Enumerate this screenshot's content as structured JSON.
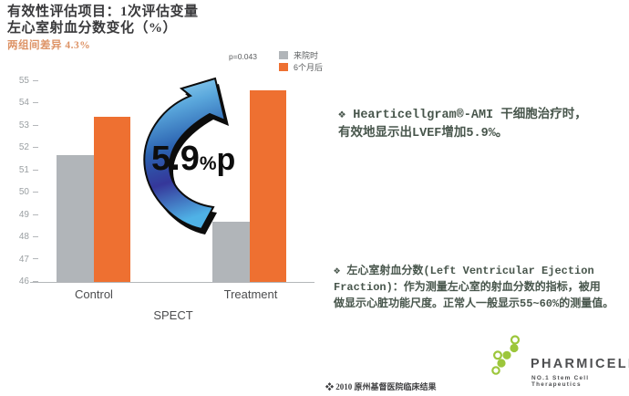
{
  "slide": {
    "title_line1": "有效性评估项目：1次评估变量",
    "title_line2": "左心室射血分数变化（%）",
    "subtitle": "两组间差异 4.3%"
  },
  "chart_data": {
    "type": "bar",
    "title": "左心室射血分数变化（%）",
    "categories": [
      "Control",
      "Treatment"
    ],
    "series": [
      {
        "name": "来院时",
        "color": "#b1b5b9",
        "values": [
          51.7,
          48.7
        ]
      },
      {
        "name": "6个月后",
        "color": "#ee7031",
        "values": [
          53.4,
          54.6
        ]
      }
    ],
    "ylim": [
      46,
      55
    ],
    "yticks": [
      55,
      54,
      53,
      52,
      51,
      50,
      49,
      48,
      47,
      46
    ],
    "xlabel": "SPECT",
    "p_value": "p=0.043",
    "annotation": "5.9%p",
    "legend_position": "top-right",
    "grid": false
  },
  "annotation": {
    "value": "5.9",
    "percent": "%",
    "point": "p"
  },
  "notes": {
    "block1_line1": "❖ Hearticellgram®-AMI 干细胞治疗时，",
    "block1_line2": "有效地显示出LVEF增加5.9%。",
    "block2_line1": "❖ 左心室射血分数(Left Ventricular Ejection",
    "block2_line2": "Fraction)：作为测量左心室的射血分数的指标，被用",
    "block2_line3": "做显示心脏功能尺度。正常人一般显示55~60%的测量值。"
  },
  "footer": {
    "source": "❖ 2010 原州基督医院临床结果",
    "logo_text": "PHARMICELL",
    "logo_tagline": "NO.1 Stem Cell Therapeutics"
  },
  "colors": {
    "bar_gray": "#b1b5b9",
    "bar_orange": "#ee7031",
    "subtitle_orange": "#dd9265",
    "note_green": "#48564c",
    "logo_green": "#9cc63b",
    "axis_gray": "#b4b7ba"
  }
}
